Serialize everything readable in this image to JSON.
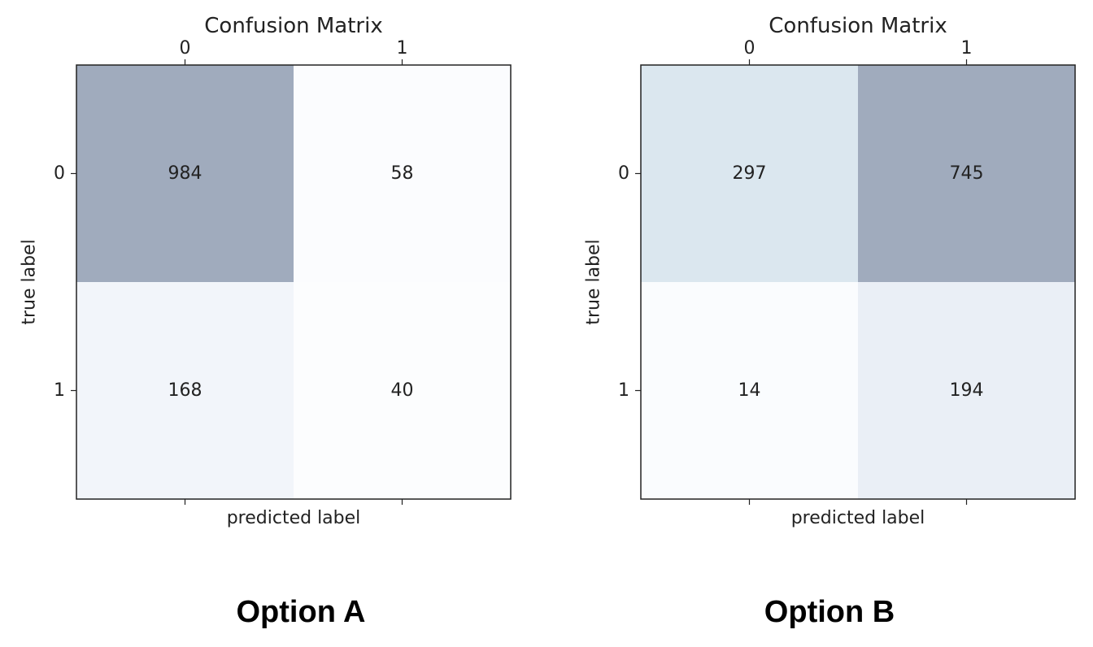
{
  "chart_data": [
    {
      "type": "heatmap",
      "title": "Confusion Matrix",
      "xlabel": "predicted label",
      "ylabel": "true label",
      "x_categories": [
        "0",
        "1"
      ],
      "y_categories": [
        "0",
        "1"
      ],
      "x_tick_position": "top",
      "values": [
        [
          984,
          58
        ],
        [
          168,
          40
        ]
      ],
      "colormap": "Blues",
      "cell_colors": [
        [
          "#a0abbd",
          "#fbfcfe"
        ],
        [
          "#f2f5fa",
          "#fcfdfe"
        ]
      ],
      "caption": "Option A"
    },
    {
      "type": "heatmap",
      "title": "Confusion Matrix",
      "xlabel": "predicted label",
      "ylabel": "true label",
      "x_categories": [
        "0",
        "1"
      ],
      "y_categories": [
        "0",
        "1"
      ],
      "x_tick_position": "top",
      "values": [
        [
          297,
          745
        ],
        [
          14,
          194
        ]
      ],
      "colormap": "Blues",
      "cell_colors": [
        [
          "#dbe7ef",
          "#a0abbd"
        ],
        [
          "#fafcfe",
          "#eaeff6"
        ]
      ],
      "caption": "Option B"
    }
  ]
}
